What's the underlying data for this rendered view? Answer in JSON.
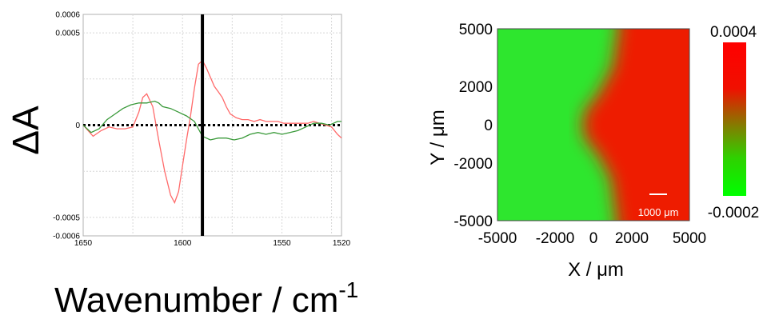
{
  "chart_data": [
    {
      "type": "line",
      "ylabel": "ΔA",
      "xlabel": "Wavenumber / cm",
      "xlabel_superscript": "-1",
      "xlim": [
        1650,
        1520
      ],
      "ylim": [
        -0.0006,
        0.0006
      ],
      "x_ticks": [
        1650,
        1600,
        1550,
        1520
      ],
      "x_tick_labels": [
        "1650",
        "1600",
        "1550",
        "1520"
      ],
      "y_ticks": [
        0.0006,
        0.0005,
        0,
        -0.0005,
        -0.0006
      ],
      "y_tick_labels": [
        "0.0006",
        "0.0005",
        "0",
        "-0.0005",
        "-0.0006"
      ],
      "grid": true,
      "vertical_marker_x": 1590,
      "zero_line": "dotted",
      "series": [
        {
          "color": "#ff6a6a",
          "x": [
            1650,
            1645,
            1641,
            1637,
            1633,
            1629,
            1625,
            1622,
            1620,
            1618,
            1615,
            1612,
            1609,
            1606,
            1604,
            1602,
            1600,
            1598,
            1596,
            1594,
            1592,
            1590,
            1588,
            1586,
            1584,
            1582,
            1580,
            1578,
            1576,
            1573,
            1570,
            1567,
            1564,
            1561,
            1558,
            1555,
            1552,
            1549,
            1546,
            1543,
            1540,
            1537,
            1534,
            1531,
            1528,
            1525,
            1522,
            1520
          ],
          "y": [
            0.0,
            -6e-05,
            -3e-05,
            -1e-05,
            -2e-05,
            -2e-05,
            -1e-05,
            7e-05,
            0.00015,
            0.00017,
            0.0001,
            -8e-05,
            -0.00025,
            -0.00038,
            -0.00042,
            -0.00036,
            -0.00022,
            -8e-05,
            5e-05,
            0.0002,
            0.00033,
            0.00035,
            0.00031,
            0.00026,
            0.00021,
            0.00018,
            0.00015,
            0.0001,
            6e-05,
            4e-05,
            3e-05,
            3e-05,
            2e-05,
            3e-05,
            2e-05,
            2e-05,
            2e-05,
            1e-05,
            1e-05,
            1e-05,
            1e-05,
            1e-05,
            2e-05,
            1e-05,
            0.0,
            -1e-05,
            -5e-05,
            -7e-05
          ]
        },
        {
          "color": "#3a9a3a",
          "x": [
            1650,
            1646,
            1642,
            1638,
            1634,
            1630,
            1626,
            1622,
            1618,
            1614,
            1612,
            1610,
            1606,
            1602,
            1598,
            1594,
            1590,
            1586,
            1582,
            1578,
            1574,
            1570,
            1566,
            1562,
            1558,
            1554,
            1550,
            1546,
            1542,
            1538,
            1534,
            1530,
            1526,
            1522,
            1520
          ],
          "y": [
            0.0,
            -4e-05,
            -2e-05,
            3e-05,
            6e-05,
            9e-05,
            0.00011,
            0.00012,
            0.00012,
            0.00013,
            0.00012,
            0.0001,
            9e-05,
            7e-05,
            5e-05,
            2e-05,
            -6e-05,
            -8e-05,
            -7e-05,
            -7e-05,
            -8e-05,
            -7e-05,
            -5e-05,
            -4e-05,
            -5e-05,
            -4e-05,
            -5e-05,
            -4e-05,
            -3e-05,
            -1e-05,
            1e-05,
            1e-05,
            0.0,
            2e-05,
            2e-05
          ]
        }
      ]
    },
    {
      "type": "heatmap",
      "xlabel": "X / μm",
      "ylabel": "Y / μm",
      "xlim": [
        -5000,
        5000
      ],
      "ylim": [
        -5000,
        5000
      ],
      "x_tick_labels": [
        "-5000",
        "-2000",
        "0",
        "2000",
        "5000"
      ],
      "x_ticks": [
        -5000,
        -2000,
        0,
        2000,
        5000
      ],
      "y_tick_labels": [
        "5000",
        "2000",
        "0",
        "-2000",
        "-5000"
      ],
      "y_ticks": [
        5000,
        2000,
        0,
        -2000,
        -5000
      ],
      "colorbar": {
        "max_label": "0.0004",
        "min_label": "-0.0002",
        "max": 0.0004,
        "min": -0.0002,
        "colors": [
          "#ff0000",
          "#00ff00"
        ]
      },
      "scale_bar": "1000 μm",
      "boundary": {
        "y": [
          5000,
          3000,
          1500,
          800,
          0,
          -800,
          -1500,
          -2800,
          -5000
        ],
        "x": [
          1300,
          1000,
          200,
          -400,
          -600,
          -400,
          200,
          900,
          1200
        ]
      },
      "low_color": "#2ee62e",
      "high_color": "#ee1a06"
    }
  ]
}
